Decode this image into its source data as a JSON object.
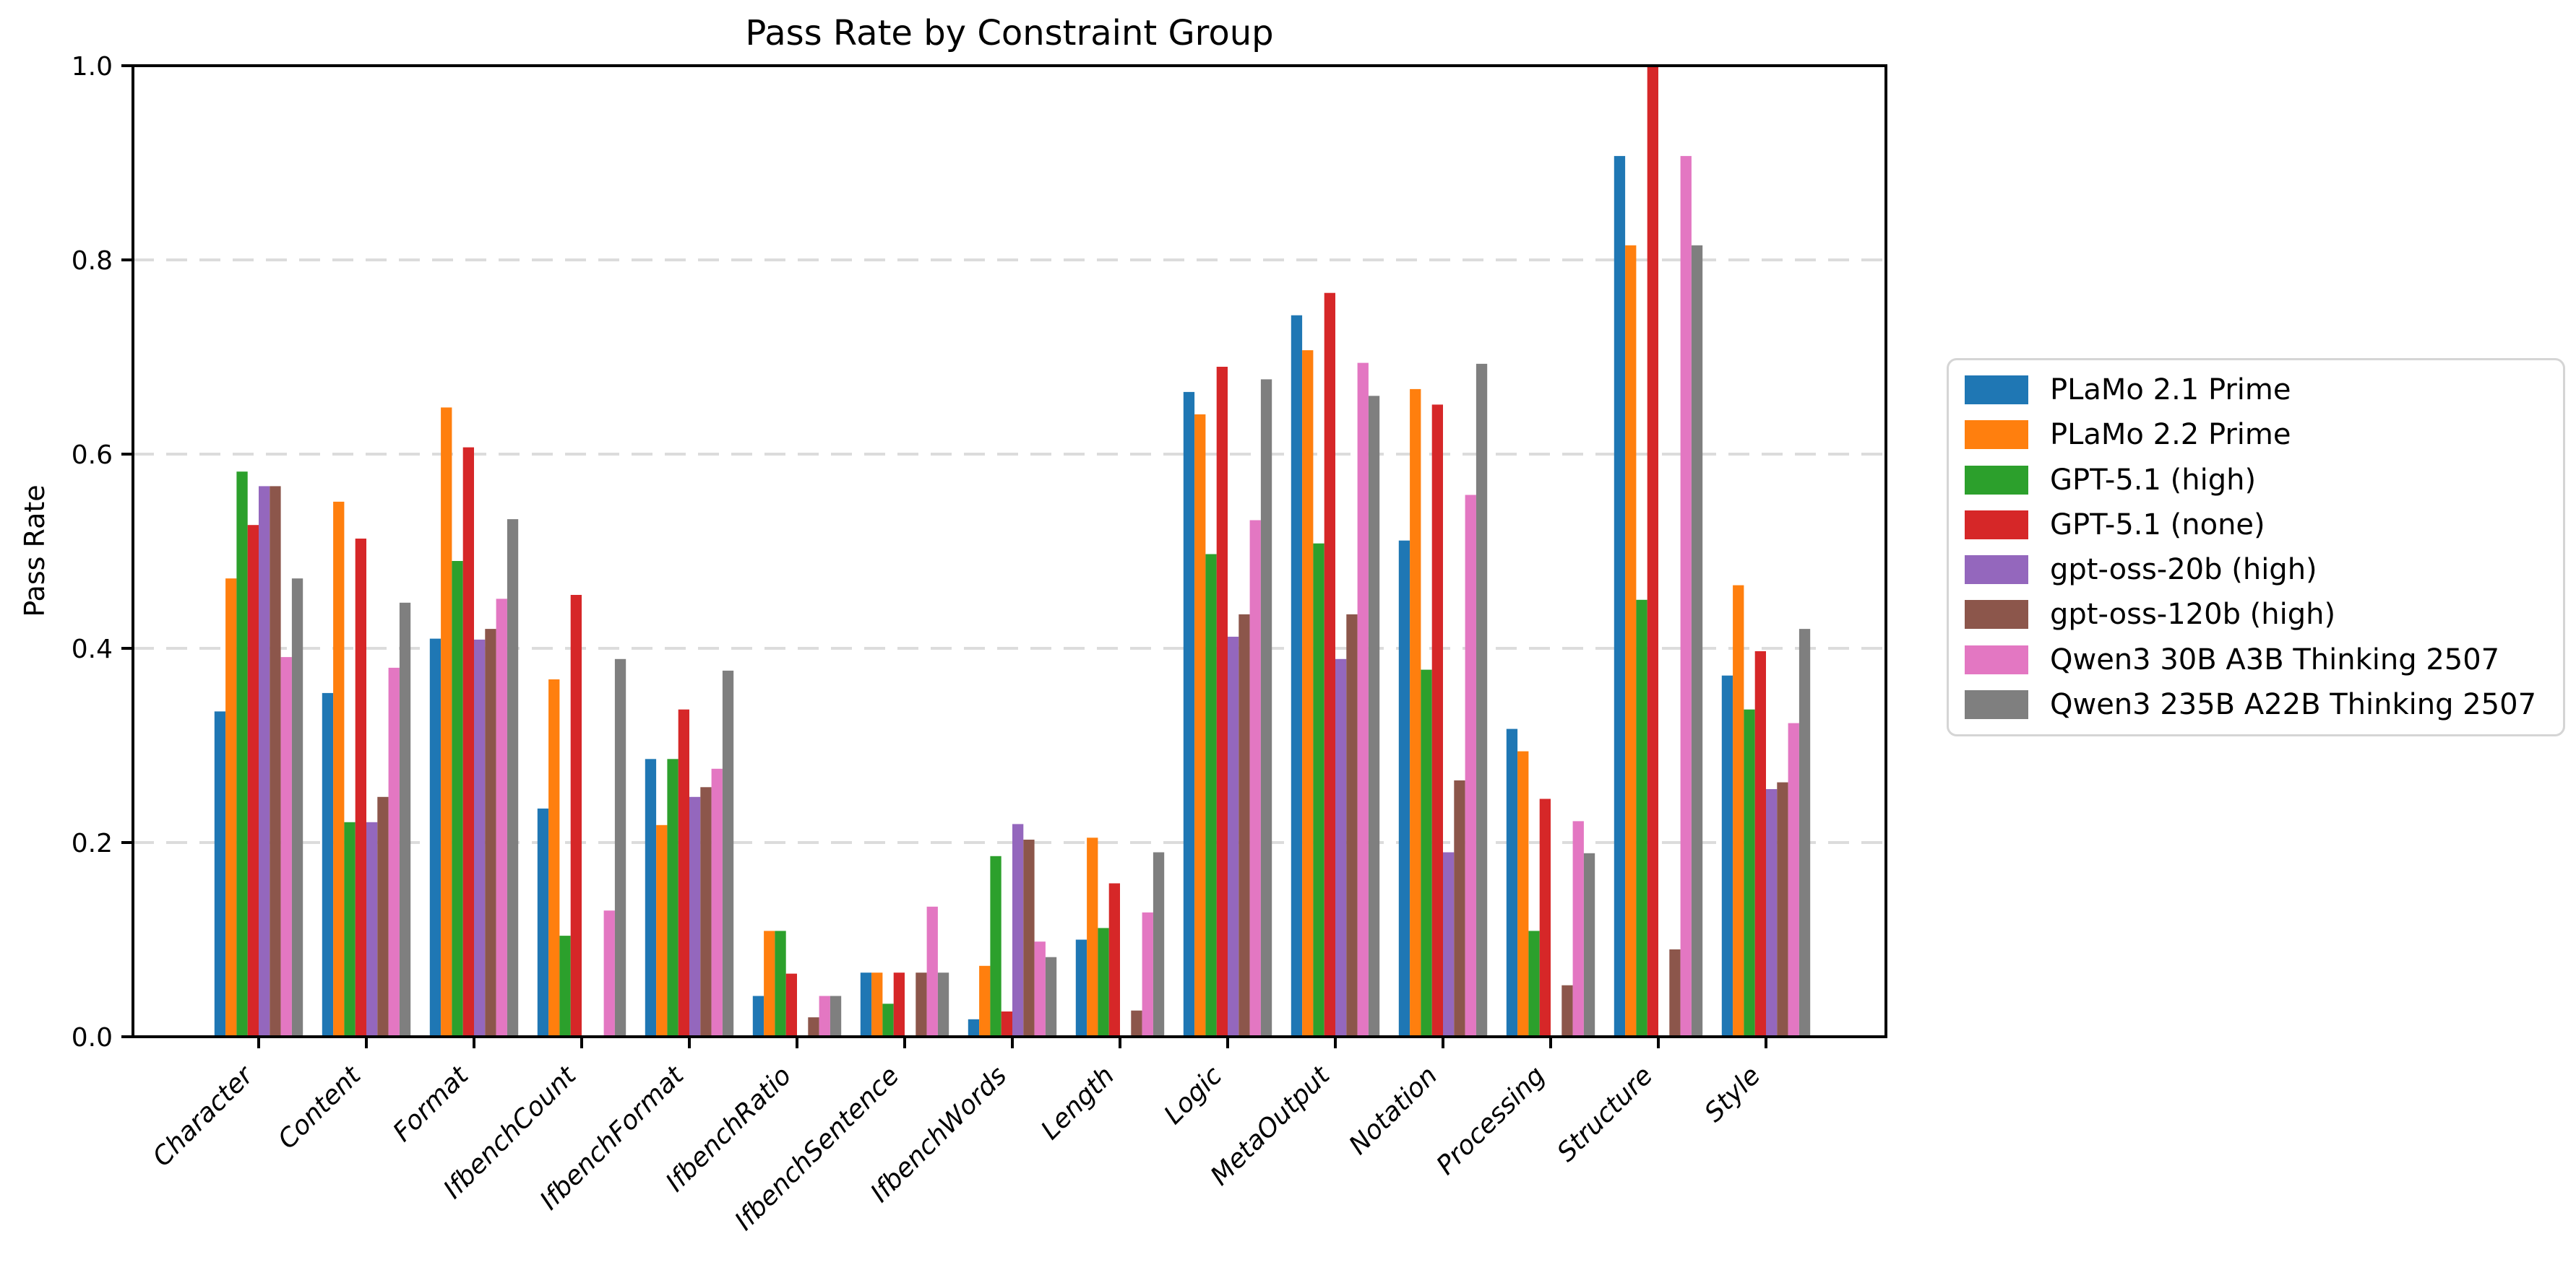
{
  "chart_data": {
    "type": "bar",
    "title": "Pass Rate by Constraint Group",
    "xlabel": "",
    "ylabel": "Pass Rate",
    "ylim": [
      0.0,
      1.0
    ],
    "yticks": [
      "0.0",
      "0.2",
      "0.4",
      "0.6",
      "0.8",
      "1.0"
    ],
    "grid": "horizontal dashed",
    "legend_position": "right outside, vertically centered",
    "categories": [
      "Character",
      "Content",
      "Format",
      "IfbenchCount",
      "IfbenchFormat",
      "IfbenchRatio",
      "IfbenchSentence",
      "IfbenchWords",
      "Length",
      "Logic",
      "MetaOutput",
      "Notation",
      "Processing",
      "Structure",
      "Style"
    ],
    "series": [
      {
        "name": "PLaMo 2.1 Prime",
        "color": "#1f77b4",
        "values": [
          0.335,
          0.354,
          0.41,
          0.235,
          0.286,
          0.042,
          0.066,
          0.018,
          0.1,
          0.664,
          0.743,
          0.511,
          0.317,
          0.907,
          0.372
        ]
      },
      {
        "name": "PLaMo 2.2 Prime",
        "color": "#ff7f0e",
        "values": [
          0.472,
          0.551,
          0.648,
          0.368,
          0.218,
          0.109,
          0.066,
          0.073,
          0.205,
          0.641,
          0.707,
          0.667,
          0.294,
          0.815,
          0.465
        ]
      },
      {
        "name": "GPT-5.1 (high)",
        "color": "#2ca02c",
        "values": [
          0.582,
          0.221,
          0.49,
          0.104,
          0.286,
          0.109,
          0.034,
          0.186,
          0.112,
          0.497,
          0.508,
          0.378,
          0.109,
          0.45,
          0.337
        ]
      },
      {
        "name": "GPT-5.1 (none)",
        "color": "#d62728",
        "values": [
          0.527,
          0.513,
          0.607,
          0.455,
          0.337,
          0.065,
          0.066,
          0.026,
          0.158,
          0.69,
          0.766,
          0.651,
          0.245,
          1.0,
          0.397
        ]
      },
      {
        "name": "gpt-oss-20b (high)",
        "color": "#9467bd",
        "values": [
          0.567,
          0.221,
          0.409,
          0.0,
          0.247,
          0.0,
          0.0,
          0.219,
          0.0,
          0.412,
          0.389,
          0.19,
          0.0,
          0.0,
          0.255
        ]
      },
      {
        "name": "gpt-oss-120b (high)",
        "color": "#8c564b",
        "values": [
          0.567,
          0.247,
          0.42,
          0.0,
          0.257,
          0.02,
          0.066,
          0.203,
          0.027,
          0.435,
          0.435,
          0.264,
          0.053,
          0.09,
          0.262
        ]
      },
      {
        "name": "Qwen3 30B A3B Thinking 2507",
        "color": "#e377c2",
        "values": [
          0.391,
          0.38,
          0.451,
          0.13,
          0.276,
          0.042,
          0.134,
          0.098,
          0.128,
          0.532,
          0.694,
          0.558,
          0.222,
          0.907,
          0.323
        ]
      },
      {
        "name": "Qwen3 235B A22B Thinking 2507",
        "color": "#7f7f7f",
        "values": [
          0.472,
          0.447,
          0.533,
          0.389,
          0.377,
          0.042,
          0.066,
          0.082,
          0.19,
          0.677,
          0.66,
          0.693,
          0.189,
          0.815,
          0.42
        ]
      }
    ]
  }
}
